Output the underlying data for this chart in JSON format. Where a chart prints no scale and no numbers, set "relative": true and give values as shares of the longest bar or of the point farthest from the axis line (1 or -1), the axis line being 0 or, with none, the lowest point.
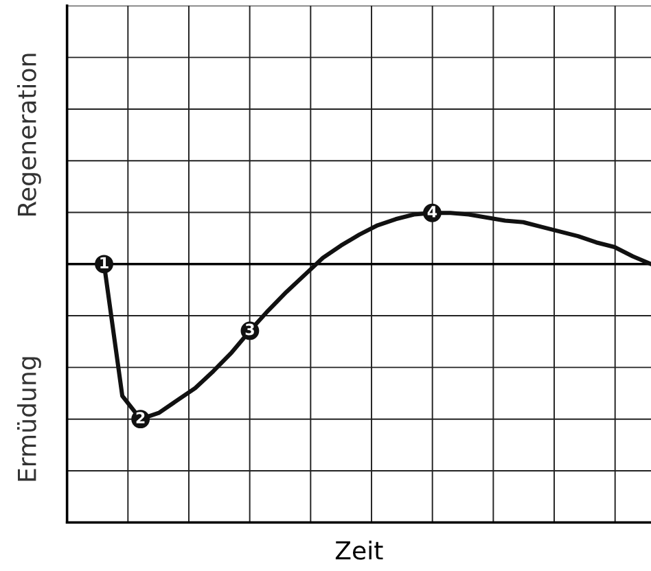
{
  "chart_data": {
    "type": "line",
    "relative": true,
    "xlabel": "Zeit",
    "annotations": [
      "Regeneration",
      "Ermüdung",
      {
        "text": "1",
        "y": 0
      },
      {
        "text": "2",
        "y": -1
      },
      {
        "text": "3",
        "y": -0.43
      },
      {
        "text": "4",
        "y": 0.33
      }
    ],
    "categories": [
      null,
      null,
      null,
      null,
      null,
      null,
      null,
      null,
      null,
      null,
      null,
      null,
      null,
      null,
      null,
      null,
      null,
      null,
      null,
      null,
      null,
      null,
      null,
      null,
      null,
      null,
      null,
      null,
      null,
      null,
      null
    ],
    "series": [
      {
        "color": "#111111",
        "values": [
          0,
          -0.85,
          -1,
          -0.96,
          -0.88,
          -0.8,
          -0.69,
          -0.57,
          -0.43,
          -0.3,
          -0.18,
          -0.07,
          0.04,
          0.12,
          0.19,
          0.25,
          0.29,
          0.32,
          0.33,
          0.33,
          0.32,
          0.3,
          0.28,
          0.27,
          0.24,
          0.21,
          0.18,
          0.14,
          0.11,
          0.05,
          0
        ]
      }
    ],
    "grid": true,
    "marker": "none",
    "line_style": "solid",
    "legend": false
  }
}
